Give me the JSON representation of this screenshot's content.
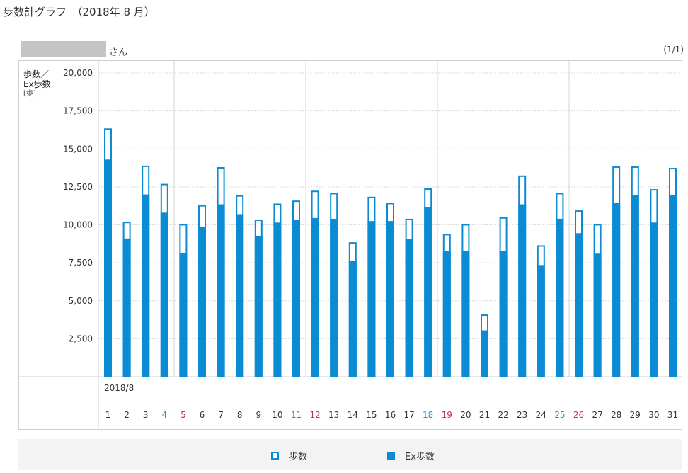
{
  "page": {
    "title": "歩数計グラフ　（2018年 8 月）",
    "name_suffix": "さん",
    "page_indicator": "(1/1)"
  },
  "colors": {
    "bar": "#0b8bd3",
    "saturday": "#1a8fd6",
    "sunday": "#c0305a",
    "weekday": "#333333",
    "grid": "#d8d8d8"
  },
  "chart_data": {
    "type": "bar",
    "ylabel_lines": [
      "歩数／",
      "Ex歩数"
    ],
    "yunit": "[歩]",
    "ylim": [
      0,
      20000
    ],
    "yticks": [
      2500,
      5000,
      7500,
      10000,
      12500,
      15000,
      17500,
      20000
    ],
    "ytick_labels": [
      "2,500",
      "5,000",
      "7,500",
      "10,000",
      "12,500",
      "15,000",
      "17,500",
      "20,000"
    ],
    "month_label": "2018/8",
    "categories": [
      "1",
      "2",
      "3",
      "4",
      "5",
      "6",
      "7",
      "8",
      "9",
      "10",
      "11",
      "12",
      "13",
      "14",
      "15",
      "16",
      "17",
      "18",
      "19",
      "20",
      "21",
      "22",
      "23",
      "24",
      "25",
      "26",
      "27",
      "28",
      "29",
      "30",
      "31"
    ],
    "day_kinds": [
      "w",
      "w",
      "w",
      "sat",
      "sun",
      "w",
      "w",
      "w",
      "w",
      "w",
      "sat",
      "sun",
      "w",
      "w",
      "w",
      "w",
      "w",
      "sat",
      "sun",
      "w",
      "w",
      "w",
      "w",
      "w",
      "sat",
      "sun",
      "w",
      "w",
      "w",
      "w",
      "w"
    ],
    "series": [
      {
        "name": "歩数",
        "values": [
          16350,
          10200,
          13900,
          12700,
          10050,
          11300,
          13800,
          11950,
          10350,
          11400,
          11600,
          12250,
          12100,
          8850,
          11850,
          11450,
          10400,
          12400,
          9400,
          10050,
          4100,
          10500,
          13250,
          8650,
          12100,
          10950,
          10050,
          13850,
          13850,
          12350,
          13750
        ]
      },
      {
        "name": "Ex歩数",
        "values": [
          14300,
          9100,
          12000,
          10800,
          8150,
          9850,
          11350,
          10700,
          9250,
          10150,
          10350,
          10450,
          10400,
          7600,
          10250,
          10250,
          9050,
          11150,
          8250,
          8300,
          3050,
          8300,
          11350,
          7350,
          10400,
          9450,
          8100,
          11450,
          11950,
          10150,
          11950
        ]
      }
    ],
    "grid": true,
    "legend_position": "bottom",
    "legend": [
      {
        "label": "歩数",
        "style": "outline"
      },
      {
        "label": "Ex歩数",
        "style": "filled"
      }
    ]
  }
}
